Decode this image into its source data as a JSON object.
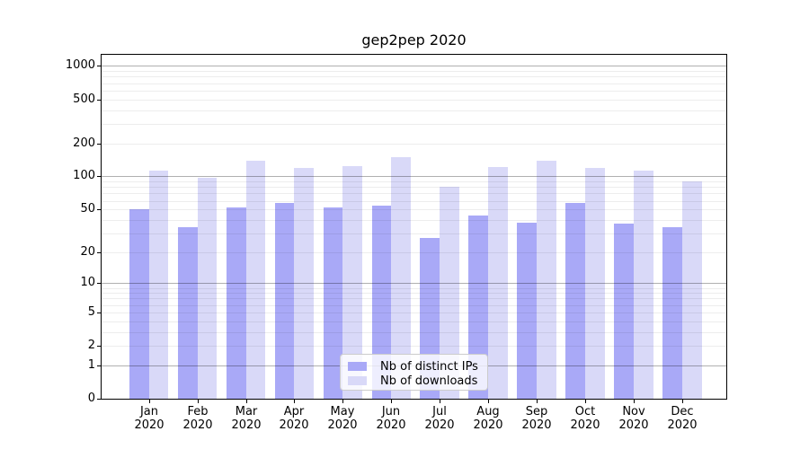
{
  "chart_data": {
    "type": "bar",
    "title": "gep2pep 2020",
    "yscale": "log1p (y position proportional to log10(1+value), 0 at baseline)",
    "ylim": [
      0,
      1285
    ],
    "yticks": [
      0,
      1,
      2,
      5,
      10,
      20,
      50,
      100,
      200,
      500,
      1000
    ],
    "grid": "major gridlines at powers of 10, faint minor gridlines at 2-9 per decade",
    "legend_position": "inside bottom-center",
    "categories": [
      "Jan",
      "Feb",
      "Mar",
      "Apr",
      "May",
      "Jun",
      "Jul",
      "Aug",
      "Sep",
      "Oct",
      "Nov",
      "Dec"
    ],
    "xtick_second_line": "2020",
    "series": [
      {
        "name": "Nb of distinct IPs",
        "color": "#a9a9f7",
        "values": [
          50,
          34,
          52,
          57,
          52,
          54,
          27,
          44,
          38,
          57,
          37,
          34
        ]
      },
      {
        "name": "Nb of downloads",
        "color": "#d9d9f8",
        "values": [
          113,
          97,
          139,
          120,
          125,
          151,
          81,
          122,
          139,
          120,
          113,
          90
        ]
      }
    ]
  }
}
